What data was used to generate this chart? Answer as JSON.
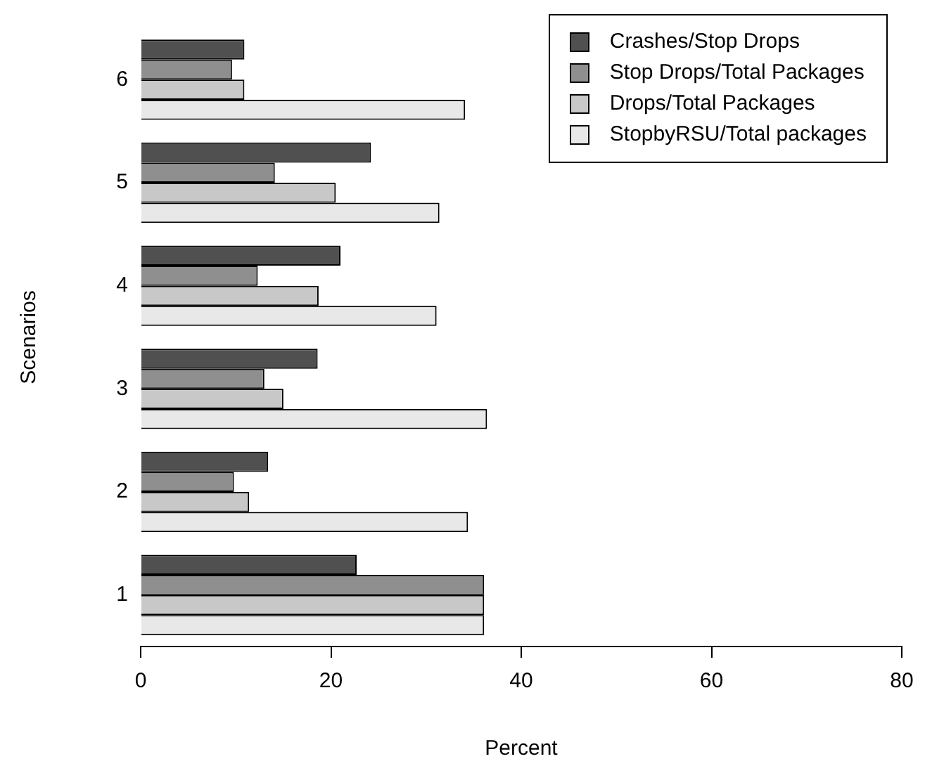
{
  "chart_data": {
    "type": "bar",
    "orientation": "horizontal",
    "xlabel": "Percent",
    "ylabel": "Scenarios",
    "categories": [
      "6",
      "5",
      "4",
      "3",
      "2",
      "1"
    ],
    "series": [
      {
        "name": "Crashes/Stop Drops",
        "color": "#505050",
        "values": [
          10.9,
          24.2,
          21.0,
          18.6,
          13.4,
          22.7
        ]
      },
      {
        "name": "Stop Drops/Total Packages",
        "color": "#8f8f8f",
        "values": [
          9.6,
          14.1,
          12.3,
          13.0,
          9.8,
          36.1
        ]
      },
      {
        "name": "Drops/Total Packages",
        "color": "#c8c8c8",
        "values": [
          10.9,
          20.5,
          18.7,
          15.0,
          11.4,
          36.1
        ]
      },
      {
        "name": "StopbyRSU/Total packages",
        "color": "#e8e8e8",
        "values": [
          34.1,
          31.4,
          31.1,
          36.4,
          34.4,
          36.1
        ]
      }
    ],
    "xlim": [
      0,
      80
    ],
    "xticks": [
      0,
      20,
      40,
      60,
      80
    ],
    "grid": false,
    "legend": "top right"
  }
}
